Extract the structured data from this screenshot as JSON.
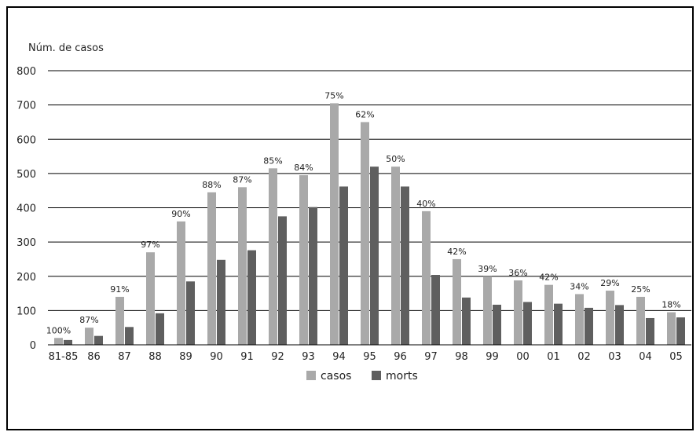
{
  "chart_data": {
    "type": "bar",
    "ylabel": "Núm. de casos",
    "ylim": [
      0,
      800
    ],
    "yticks": [
      "0",
      "100",
      "200",
      "300",
      "400",
      "500",
      "600",
      "700",
      "800"
    ],
    "grid": true,
    "legend_position": "bottom",
    "categories": [
      "81-85",
      "86",
      "87",
      "88",
      "89",
      "90",
      "91",
      "92",
      "93",
      "94",
      "95",
      "96",
      "97",
      "98",
      "99",
      "00",
      "01",
      "02",
      "03",
      "04",
      "05"
    ],
    "series": [
      {
        "name": "casos",
        "color": "#a9a9a9",
        "values": [
          20,
          50,
          140,
          270,
          360,
          445,
          460,
          515,
          495,
          705,
          650,
          520,
          390,
          250,
          200,
          188,
          175,
          148,
          158,
          140,
          95
        ]
      },
      {
        "name": "morts",
        "color": "#5f5f5f",
        "values": [
          14,
          26,
          52,
          92,
          185,
          248,
          276,
          375,
          402,
          462,
          520,
          462,
          204,
          138,
          117,
          125,
          120,
          108,
          116,
          78,
          80
        ]
      }
    ],
    "data_labels": [
      "100%",
      "87%",
      "91%",
      "97%",
      "90%",
      "88%",
      "87%",
      "85%",
      "84%",
      "75%",
      "62%",
      "50%",
      "40%",
      "42%",
      "39%",
      "36%",
      "42%",
      "34%",
      "29%",
      "25%",
      "18%"
    ]
  }
}
